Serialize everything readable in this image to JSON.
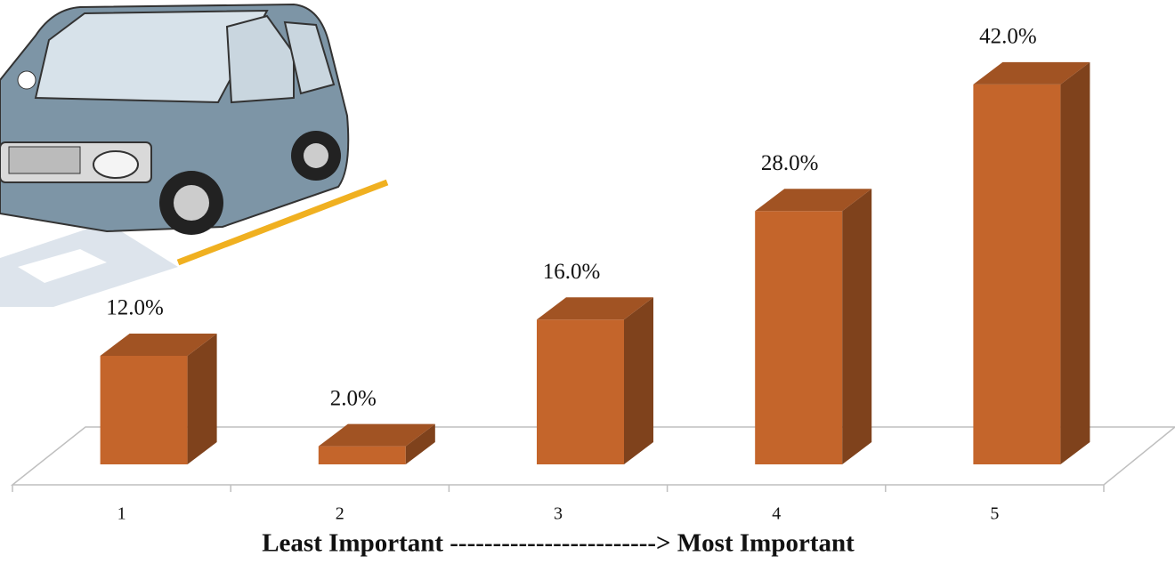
{
  "chart_data": {
    "type": "bar3d",
    "categories": [
      "1",
      "2",
      "3",
      "4",
      "5"
    ],
    "values": [
      12,
      2,
      16,
      28,
      42
    ],
    "value_labels": [
      "12.0%",
      "2.0%",
      "16.0%",
      "28.0%",
      "42.0%"
    ],
    "x_label": "Least Important ------------------------> Most Important",
    "color": "#c4652b"
  }
}
